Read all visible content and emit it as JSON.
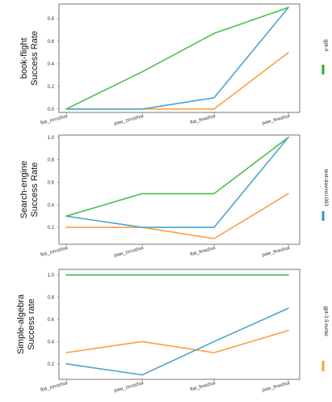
{
  "chart_data": [
    {
      "type": "line",
      "categories": [
        "flat_zeroshot",
        "paw_zeroshot",
        "flat_fewshot",
        "paw_fewshot"
      ],
      "ylabel": [
        "book-flight",
        "Success Rate"
      ],
      "ylim": [
        -0.03,
        0.93
      ],
      "yticks": [
        0.0,
        0.2,
        0.4,
        0.6,
        0.8
      ],
      "ytick_labels": [
        "0.0",
        "0.2",
        "0.4",
        "0.6",
        "0.8"
      ],
      "grid": false,
      "series": [
        {
          "model": "gpt-4",
          "color": "#4cbf4c",
          "values": [
            0.0,
            0.33,
            0.67,
            0.9
          ]
        },
        {
          "model": "text-davinci-003",
          "color": "#4fa3cc",
          "values": [
            0.0,
            0.0,
            0.1,
            0.9
          ]
        },
        {
          "model": "gpt-3.5-turbo",
          "color": "#f9a040",
          "values": [
            0.0,
            0.0,
            0.0,
            0.5
          ]
        }
      ]
    },
    {
      "type": "line",
      "categories": [
        "flat_zeroshot",
        "paw_zeroshot",
        "flat_fewshot",
        "paw_fewshot"
      ],
      "ylabel": [
        "Search-engine",
        "Success Rate"
      ],
      "ylim": [
        0.05,
        1.02
      ],
      "yticks": [
        0.2,
        0.4,
        0.6,
        0.8,
        1.0
      ],
      "ytick_labels": [
        "0.2",
        "0.4",
        "0.6",
        "0.8",
        "1.0"
      ],
      "grid": false,
      "series": [
        {
          "model": "gpt-4",
          "color": "#4cbf4c",
          "values": [
            0.3,
            0.5,
            0.5,
            1.0
          ]
        },
        {
          "model": "text-davinci-003",
          "color": "#4fa3cc",
          "values": [
            0.3,
            0.2,
            0.2,
            1.0
          ]
        },
        {
          "model": "gpt-3.5-turbo",
          "color": "#f9a040",
          "values": [
            0.2,
            0.2,
            0.1,
            0.5
          ]
        }
      ]
    },
    {
      "type": "line",
      "categories": [
        "flat_zeroshot",
        "paw_zeroshot",
        "flat_fewshot",
        "paw_fewshot"
      ],
      "ylabel": [
        "Simple-algebra",
        "Success rate"
      ],
      "ylim": [
        0.06,
        1.05
      ],
      "yticks": [
        0.2,
        0.4,
        0.6,
        0.8,
        1.0
      ],
      "ytick_labels": [
        "0.2",
        "0.4",
        "0.6",
        "0.8",
        "1.0"
      ],
      "grid": false,
      "series": [
        {
          "model": "gpt-4",
          "color": "#4cbf4c",
          "values": [
            1.0,
            1.0,
            1.0,
            1.0
          ]
        },
        {
          "model": "text-davinci-003",
          "color": "#4fa3cc",
          "values": [
            0.2,
            0.1,
            0.4,
            0.7
          ]
        },
        {
          "model": "gpt-3.5-turbo",
          "color": "#f9a040",
          "values": [
            0.3,
            0.4,
            0.3,
            0.5
          ]
        }
      ]
    }
  ],
  "legend": [
    {
      "label": "gpt-4",
      "color": "#2eaa2e"
    },
    {
      "label": "text-davinci-003",
      "color": "#3b93c4"
    },
    {
      "label": "gpt-3.5-turbo",
      "color": "#f9a040"
    }
  ]
}
